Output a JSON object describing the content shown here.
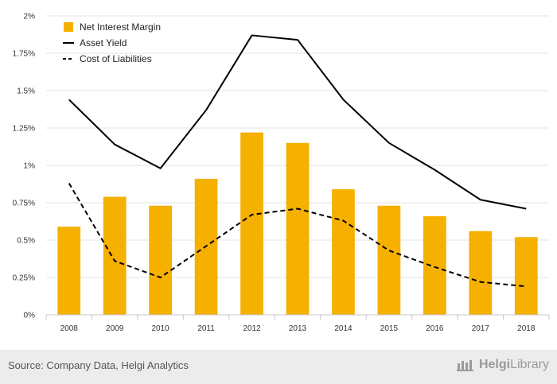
{
  "chart_data": {
    "type": "bar",
    "categories": [
      "2008",
      "2009",
      "2010",
      "2011",
      "2012",
      "2013",
      "2014",
      "2015",
      "2016",
      "2017",
      "2018"
    ],
    "series": [
      {
        "name": "Net Interest Margin",
        "kind": "bar",
        "color": "#f5b000",
        "values": [
          0.59,
          0.79,
          0.73,
          0.91,
          1.22,
          1.15,
          0.84,
          0.73,
          0.66,
          0.56,
          0.52
        ]
      },
      {
        "name": "Asset Yield",
        "kind": "line",
        "color": "#000000",
        "dash": "solid",
        "values": [
          1.44,
          1.14,
          0.98,
          1.37,
          1.87,
          1.84,
          1.44,
          1.15,
          0.97,
          0.77,
          0.71
        ]
      },
      {
        "name": "Cost of Liabilities",
        "kind": "line",
        "color": "#000000",
        "dash": "dashed",
        "values": [
          0.88,
          0.36,
          0.25,
          0.46,
          0.67,
          0.71,
          0.63,
          0.43,
          0.32,
          0.22,
          0.19
        ]
      }
    ],
    "ylim": [
      0,
      2
    ],
    "yticks": [
      0,
      0.25,
      0.5,
      0.75,
      1,
      1.25,
      1.5,
      1.75,
      2
    ],
    "ytick_labels": [
      "0%",
      "0.25%",
      "0.5%",
      "0.75%",
      "1%",
      "1.25%",
      "1.5%",
      "1.75%",
      "2%"
    ],
    "legend_position": "top-left",
    "title": "",
    "xlabel": "",
    "ylabel": ""
  },
  "footer": {
    "source": "Source: Company Data, Helgi Analytics",
    "brand_bold": "Helgi",
    "brand_light": "Library"
  }
}
